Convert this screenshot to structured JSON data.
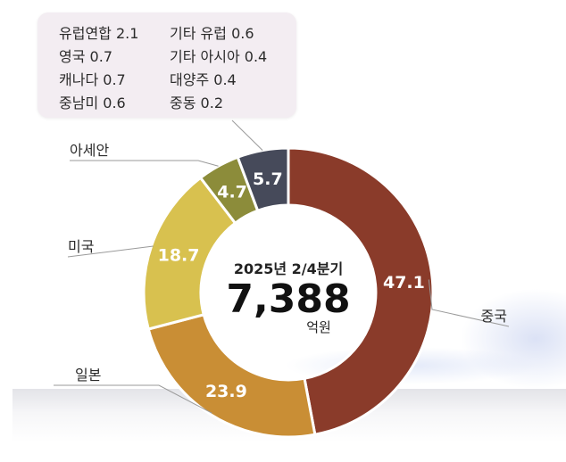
{
  "legend_box": {
    "items": [
      {
        "name": "유럽연합",
        "value": "2.1"
      },
      {
        "name": "기타 유럽",
        "value": "0.6"
      },
      {
        "name": "영국",
        "value": "0.7"
      },
      {
        "name": "기타 아시아",
        "value": "0.4"
      },
      {
        "name": "캐나다",
        "value": "0.7"
      },
      {
        "name": "대양주",
        "value": "0.4"
      },
      {
        "name": "중남미",
        "value": "0.6"
      },
      {
        "name": "중동",
        "value": "0.2"
      }
    ]
  },
  "center": {
    "title": "2025년 2/4분기",
    "value": "7,388",
    "unit": "억원"
  },
  "chart_data": {
    "type": "pie",
    "donut": true,
    "slices": [
      {
        "label": "중국",
        "value": 47.1,
        "color": "#8a3b2a"
      },
      {
        "label": "일본",
        "value": 23.9,
        "color": "#c98e35"
      },
      {
        "label": "미국",
        "value": 18.7,
        "color": "#d8c14f"
      },
      {
        "label": "아세안",
        "value": 4.7,
        "color": "#8c8c3a"
      },
      {
        "label": "",
        "value": 5.7,
        "color": "#464a5a"
      }
    ]
  }
}
